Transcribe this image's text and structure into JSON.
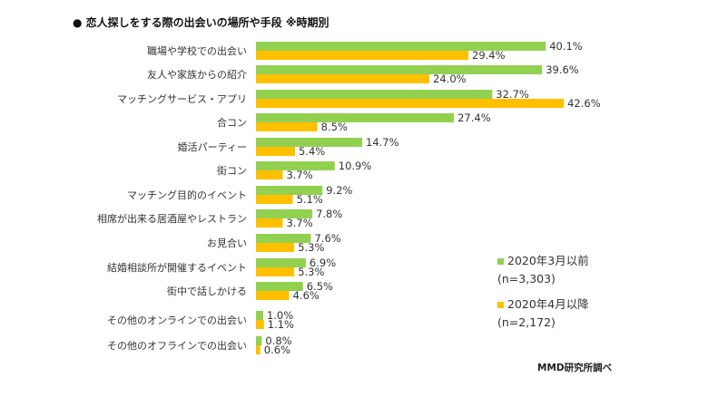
{
  "chart_data": {
    "type": "bar",
    "orientation": "horizontal",
    "title": "●  恋人探しをする際の出会いの場所や手段 ※時期別",
    "categories": [
      "職場や学校での出会い",
      "友人や家族からの紹介",
      "マッチングサービス・アプリ",
      "合コン",
      "婚活パーティー",
      "街コン",
      "マッチング目的のイベント",
      "相席が出来る居酒屋やレストラン",
      "お見合い",
      "結婚相談所が開催するイベント",
      "街中で話しかける",
      "その他のオンラインでの出会い",
      "その他のオフラインでの出会い"
    ],
    "series": [
      {
        "name": "2020年3月以前",
        "note": "(n=3,303)",
        "color": "#92d050",
        "values": [
          40.1,
          39.6,
          32.7,
          27.4,
          14.7,
          10.9,
          9.2,
          7.8,
          7.6,
          6.9,
          6.5,
          1.0,
          0.8
        ]
      },
      {
        "name": "2020年4月以降",
        "note": "(n=2,172)",
        "color": "#ffc000",
        "values": [
          29.4,
          24.0,
          42.6,
          8.5,
          5.4,
          3.7,
          5.1,
          3.7,
          5.3,
          5.3,
          4.6,
          1.1,
          0.6
        ]
      }
    ],
    "value_format": "%",
    "legend_position": "right",
    "grid": false
  },
  "source": "MMD研究所調べ"
}
